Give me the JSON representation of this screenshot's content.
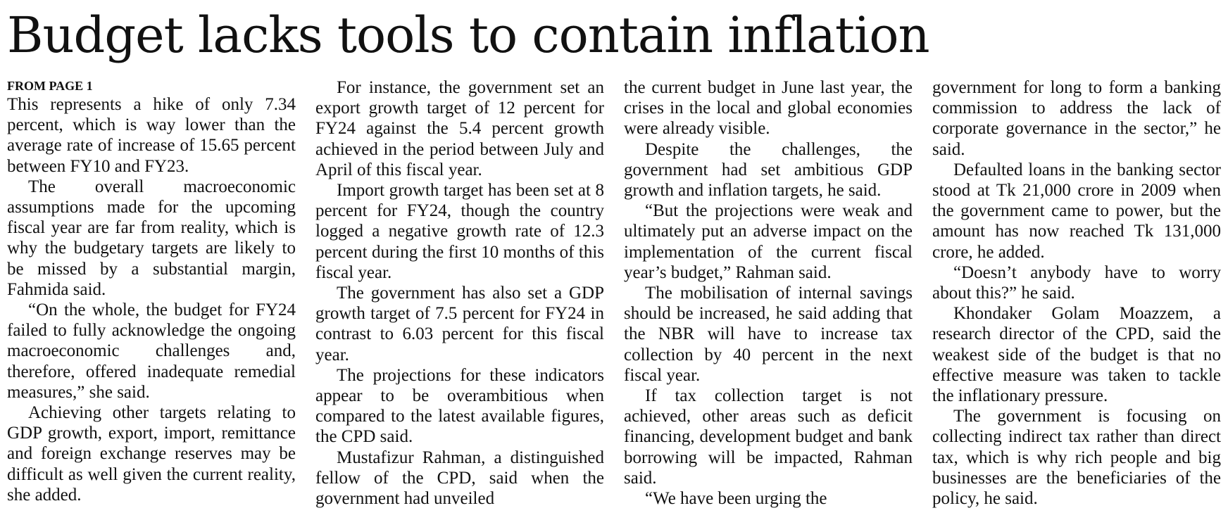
{
  "headline": "Budget lacks tools to contain inflation",
  "kicker": "FROM PAGE 1",
  "columns": [
    {
      "paragraphs": [
        {
          "text": "This represents a hike of only 7.34 percent, which is way lower than the average rate of increase of 15.65 percent between FY10 and FY23.",
          "indent": false
        },
        {
          "text": "The overall macroeconomic assumptions made for the upcoming fiscal year are far from reality, which is why the budgetary targets are likely to be missed by a substantial margin, Fahmida said.",
          "indent": true
        },
        {
          "text": "“On the whole, the budget for FY24 failed to fully acknowledge the ongoing macroeconomic challenges and, therefore, offered inadequate remedial measures,” she said.",
          "indent": true
        },
        {
          "text": "Achieving other targets relating to GDP growth, export, import, remittance and foreign exchange reserves may be difficult as well given the current reality, she added.",
          "indent": true
        }
      ]
    },
    {
      "paragraphs": [
        {
          "text": "For instance, the government set an export growth target of 12 percent for FY24 against the 5.4 percent growth achieved in the period between July and April of this fiscal year.",
          "indent": true
        },
        {
          "text": "Import growth target has been set at 8 percent for FY24, though the country logged a negative growth rate of 12.3 percent during the first 10 months of this fiscal year.",
          "indent": true
        },
        {
          "text": "The government has also set a GDP growth target of 7.5 percent for FY24 in contrast to 6.03 percent for this fiscal year.",
          "indent": true
        },
        {
          "text": "The projections for these indicators appear to be overambitious when compared to the latest available figures, the CPD said.",
          "indent": true
        },
        {
          "text": "Mustafizur Rahman, a distinguished fellow of the CPD, said when the government had unveiled",
          "indent": true
        }
      ]
    },
    {
      "paragraphs": [
        {
          "text": "the current budget in June last year, the crises in the local and global economies were already visible.",
          "indent": false
        },
        {
          "text": "Despite the challenges, the government had set ambitious GDP growth and inflation targets, he said.",
          "indent": true
        },
        {
          "text": "“But the projections were weak and ultimately put an adverse impact on the implementation of the current fiscal year’s budget,” Rahman said.",
          "indent": true
        },
        {
          "text": "The mobilisation of internal savings should be increased, he said adding that the NBR will have to increase tax collection by 40 percent in the next fiscal year.",
          "indent": true
        },
        {
          "text": "If tax collection target is not achieved, other areas such as deficit financing, development budget and bank borrowing will be impacted, Rahman said.",
          "indent": true
        },
        {
          "text": "“We have been urging the",
          "indent": true
        }
      ]
    },
    {
      "paragraphs": [
        {
          "text": "government for long to form a banking commission to address the lack of corporate governance in the sector,” he said.",
          "indent": false
        },
        {
          "text": "Defaulted loans in the banking sector stood at Tk 21,000 crore in 2009 when the government came to power, but the amount has now reached Tk 131,000 crore, he added.",
          "indent": true
        },
        {
          "text": "“Doesn’t anybody have to worry about this?” he said.",
          "indent": true
        },
        {
          "text": "Khondaker Golam Moazzem, a research director of the CPD, said the weakest side of the budget is that no effective measure was taken to tackle the inflationary pressure.",
          "indent": true
        },
        {
          "text": "The government is focusing on collecting indirect tax rather than direct tax, which is why rich people and big businesses are the beneficiaries of the policy, he said.",
          "indent": true
        }
      ]
    }
  ]
}
